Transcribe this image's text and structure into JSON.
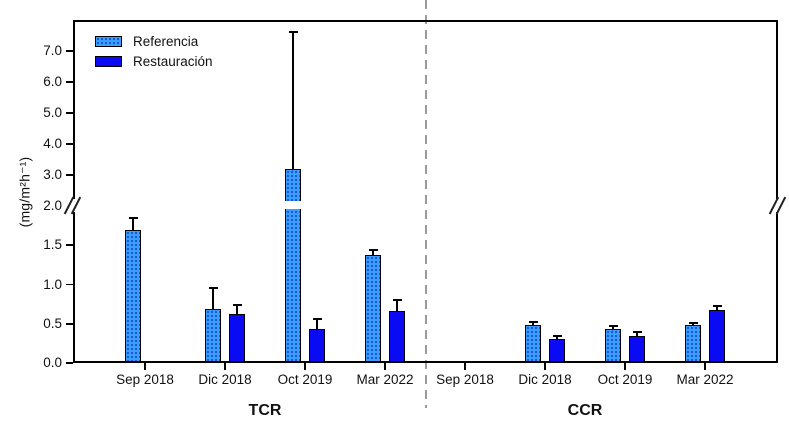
{
  "chart_data": {
    "type": "bar",
    "title": "",
    "grid": false,
    "y_axis": {
      "label": "(mg/m²h⁻¹)",
      "ticks_lower": [
        0.0,
        0.5,
        1.0,
        1.5,
        2.0
      ],
      "ticks_upper": [
        3.0,
        4.0,
        5.0,
        6.0,
        7.0
      ],
      "axis_break": {
        "between": [
          2.0,
          3.0
        ],
        "style": "double-slash"
      },
      "ylim": [
        0.0,
        8.0
      ]
    },
    "series_names": [
      "Referencia",
      "Restauración"
    ],
    "legend": {
      "position": "top-left",
      "items": [
        "Referencia",
        "Restauración"
      ]
    },
    "groups": [
      {
        "label": "TCR",
        "categories": [
          "Sep 2018",
          "Dic 2018",
          "Oct 2019",
          "Mar 2022"
        ],
        "series": [
          {
            "name": "Referencia",
            "values": [
              1.7,
              0.69,
              3.2,
              1.38
            ],
            "err_high": [
              1.85,
              0.95,
              7.6,
              1.44
            ]
          },
          {
            "name": "Restauración",
            "values": [
              null,
              0.62,
              0.43,
              0.66
            ],
            "err_high": [
              null,
              0.74,
              0.56,
              0.8
            ]
          }
        ]
      },
      {
        "label": "CCR",
        "categories": [
          "Sep 2018",
          "Dic 2018",
          "Oct 2019",
          "Mar 2022"
        ],
        "series": [
          {
            "name": "Referencia",
            "values": [
              null,
              0.48,
              0.43,
              0.49
            ],
            "err_high": [
              null,
              0.52,
              0.47,
              0.51
            ]
          },
          {
            "name": "Restauración",
            "values": [
              null,
              0.31,
              0.34,
              0.68
            ],
            "err_high": [
              null,
              0.34,
              0.39,
              0.73
            ]
          }
        ]
      }
    ],
    "colors": {
      "referencia_fill": "#3B9DFF",
      "referencia_dots": "#1A55C8",
      "restauracion_fill": "#0A0AF5",
      "bar_border": "#000000",
      "axis": "#000000",
      "divider": "#9A9A9A"
    }
  }
}
